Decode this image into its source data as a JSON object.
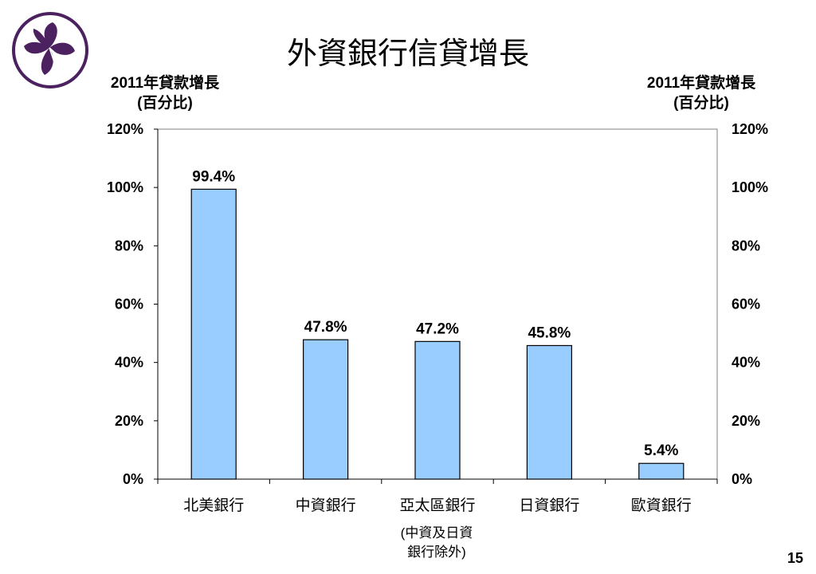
{
  "slide": {
    "title": "外資銀行信貸增長",
    "page_number": "15",
    "logo": "bauhinia-flower-logo",
    "logo_color": "#4B2160"
  },
  "chart_data": {
    "type": "bar",
    "title": "外資銀行信貸增長",
    "y_axis_left_label": [
      "2011年貸款增長",
      "(百分比)"
    ],
    "y_axis_right_label": [
      "2011年貸款增長",
      "(百分比)"
    ],
    "categories": [
      "北美銀行",
      "中資銀行",
      "亞太區銀行",
      "日資銀行",
      "歐資銀行"
    ],
    "values": [
      99.4,
      47.8,
      47.2,
      45.8,
      5.4
    ],
    "data_labels": [
      "99.4%",
      "47.8%",
      "47.2%",
      "45.8%",
      "5.4%"
    ],
    "category_note": [
      "(中資及日資",
      "銀行除外)"
    ],
    "ylim": [
      0,
      120
    ],
    "yticks": [
      0,
      20,
      40,
      60,
      80,
      100,
      120
    ],
    "ytick_labels": [
      "0%",
      "20%",
      "40%",
      "60%",
      "80%",
      "100%",
      "120%"
    ],
    "grid": false,
    "legend": "none",
    "bar_color": "#99CCFF",
    "bar_edge_color": "#000000"
  }
}
